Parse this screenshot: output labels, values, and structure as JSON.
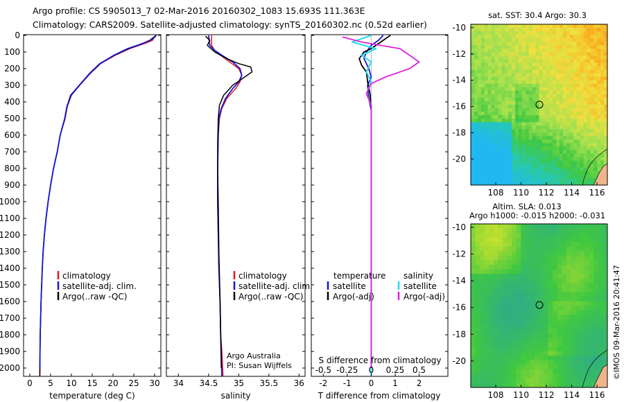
{
  "header": {
    "line1": "Argo profile: CS 5905013_7 02-Mar-2016 20160302_1083 15.693S 111.363E",
    "line2": "Climatology: CARS2009. Satellite-adjusted climatology: synTS_20160302.nc (0.52d earlier)"
  },
  "colors": {
    "climatology": "#e8141b",
    "satellite": "#1414d8",
    "argo": "#000000",
    "sal_sat": "#22d8f0",
    "sal_argo": "#e020e0",
    "land": "#f0b48c"
  },
  "depth_ticks": [
    0,
    100,
    200,
    300,
    400,
    500,
    600,
    700,
    800,
    900,
    1000,
    1100,
    1200,
    1300,
    1400,
    1500,
    1600,
    1700,
    1800,
    1900,
    2000
  ],
  "panels": {
    "temperature": {
      "xlabel": "temperature (deg C)",
      "xticks": [
        0,
        5,
        10,
        15,
        20,
        25,
        30
      ],
      "legend": [
        "climatology",
        "satellite-adj. clim.",
        "Argo(..raw -QC)"
      ]
    },
    "salinity": {
      "xlabel": "salinity",
      "xticks": [
        "34",
        "34.5",
        "35",
        "35.5",
        "36"
      ],
      "legend": [
        "climatology",
        "satellite-adj. clim.",
        "Argo(..raw -QC)"
      ],
      "note1": "Argo Australia",
      "note2": "PI: Susan Wijffels"
    },
    "difference": {
      "xlabel": "T difference from climatology",
      "xticks": [
        "-2",
        "-1",
        "0",
        "1",
        "2"
      ],
      "top_label": "S difference from climatology",
      "top_ticks": [
        "-0.5",
        "-0.25",
        "0",
        "0.25",
        "0.5"
      ],
      "legend_temp_head": "temperature",
      "legend_sal_head": "salinity",
      "legend_items": [
        "satellite",
        "Argo(-adj)",
        "satellite",
        "Argo(-adj)"
      ]
    },
    "sst_map": {
      "title": "sat. SST: 30.4 Argo: 30.3",
      "yticks": [
        "-10",
        "-12",
        "-14",
        "-16",
        "-18",
        "-20"
      ],
      "xticks": [
        "108",
        "110",
        "112",
        "114",
        "116"
      ]
    },
    "sla_map": {
      "title1": "Altim. SLA: 0.013",
      "title2": "Argo h1000: -0.015 h2000: -0.031",
      "yticks": [
        "-10",
        "-12",
        "-14",
        "-16",
        "-18",
        "-20"
      ],
      "xticks": [
        "108",
        "110",
        "112",
        "114",
        "116"
      ]
    }
  },
  "stamp": "©IMOS 09-Mar-2016 20:41:47",
  "chart_data": [
    {
      "type": "line",
      "title": "",
      "xlabel": "temperature (deg C)",
      "ylabel": "",
      "xlim": [
        -1.5,
        31.5
      ],
      "ylim": [
        2050,
        0
      ],
      "series": [
        {
          "name": "climatology",
          "x": [
            30.2,
            29.5,
            27.5,
            24,
            20.5,
            17,
            14.5,
            12,
            10,
            9,
            8.5,
            7.3,
            6.6,
            5.7,
            5.0,
            4.4,
            3.9,
            3.5,
            3.2,
            3.0,
            2.7,
            2.5,
            2.4
          ],
          "y": [
            0,
            30,
            50,
            80,
            120,
            170,
            230,
            300,
            360,
            430,
            500,
            600,
            700,
            800,
            900,
            1000,
            1100,
            1200,
            1300,
            1400,
            1600,
            1800,
            2050
          ]
        },
        {
          "name": "satellite-adj. clim.",
          "x": [
            30.4,
            28.8,
            27,
            23.8,
            20.3,
            16.8,
            14.3,
            11.9,
            9.8,
            8.9,
            8.4,
            7.3,
            6.6,
            5.7,
            5.0,
            4.4,
            3.9,
            3.5,
            3.2,
            3.0,
            2.7,
            2.5,
            2.4
          ],
          "y": [
            0,
            30,
            50,
            80,
            120,
            170,
            230,
            300,
            360,
            430,
            500,
            600,
            700,
            800,
            900,
            1000,
            1100,
            1200,
            1300,
            1400,
            1600,
            1800,
            2050
          ]
        },
        {
          "name": "Argo(..raw -QC)",
          "x": [
            30.3,
            29,
            27,
            23.5,
            20.2,
            16.9,
            14.4,
            11.9,
            9.9,
            8.9,
            8.4,
            7.3,
            6.6,
            5.7,
            5.0,
            4.4,
            3.9,
            3.5,
            3.2,
            3.0,
            2.7,
            2.5,
            2.4
          ],
          "y": [
            5,
            30,
            50,
            80,
            120,
            170,
            230,
            300,
            360,
            430,
            500,
            600,
            700,
            800,
            900,
            1000,
            1100,
            1200,
            1300,
            1400,
            1600,
            1800,
            2000
          ]
        }
      ]
    },
    {
      "type": "line",
      "title": "",
      "xlabel": "salinity",
      "ylabel": "",
      "xlim": [
        33.8,
        36.1
      ],
      "ylim": [
        2050,
        0
      ],
      "series": [
        {
          "name": "climatology",
          "x": [
            34.55,
            34.55,
            34.6,
            34.7,
            34.85,
            35.0,
            35.05,
            35.02,
            34.95,
            34.8,
            34.72,
            34.68,
            34.66,
            34.65,
            34.65,
            34.66,
            34.67,
            34.69,
            34.7,
            34.72,
            34.74
          ],
          "y": [
            0,
            60,
            90,
            120,
            160,
            200,
            240,
            280,
            320,
            380,
            440,
            500,
            600,
            800,
            1000,
            1200,
            1400,
            1600,
            1800,
            1900,
            2050
          ]
        },
        {
          "name": "satellite-adj. clim.",
          "x": [
            34.5,
            34.52,
            34.6,
            34.72,
            34.9,
            35.02,
            35.05,
            35.0,
            34.9,
            34.78,
            34.71,
            34.67,
            34.66,
            34.65,
            34.65,
            34.66,
            34.67,
            34.69,
            34.7,
            34.71,
            34.72
          ],
          "y": [
            0,
            60,
            90,
            120,
            160,
            200,
            240,
            280,
            320,
            380,
            440,
            500,
            600,
            800,
            1000,
            1200,
            1400,
            1600,
            1800,
            1900,
            2050
          ]
        },
        {
          "name": "Argo(..raw -QC)",
          "x": [
            34.45,
            34.52,
            34.48,
            34.6,
            34.8,
            35.0,
            35.2,
            35.22,
            35.1,
            34.9,
            34.75,
            34.68,
            34.66,
            34.65,
            34.65,
            34.66,
            34.67,
            34.69,
            34.7,
            34.71
          ],
          "y": [
            5,
            30,
            60,
            100,
            140,
            170,
            190,
            220,
            250,
            300,
            360,
            420,
            500,
            650,
            800,
            1000,
            1300,
            1600,
            1800,
            2000
          ]
        }
      ]
    },
    {
      "type": "line",
      "title": "",
      "xlabel": "T difference from climatology",
      "ylabel": "",
      "xlim": [
        -2.5,
        3.2
      ],
      "ylim": [
        2050,
        0
      ],
      "series": [
        {
          "name": "T satellite",
          "x": [
            0.5,
            0.3,
            0.0,
            -0.2,
            -0.3,
            -0.1,
            0.0,
            -0.15,
            -0.1,
            0.0,
            0.0,
            0.0,
            0.0,
            0.0
          ],
          "y": [
            0,
            30,
            60,
            100,
            140,
            200,
            250,
            300,
            380,
            450,
            600,
            1000,
            1500,
            2050
          ]
        },
        {
          "name": "T Argo(-adj)",
          "x": [
            0.8,
            0.6,
            0.4,
            0.2,
            0.0,
            -0.3,
            -0.5,
            -0.4,
            -0.2,
            -0.15,
            -0.05,
            0.0,
            0.0,
            0.0,
            0.0
          ],
          "y": [
            0,
            20,
            40,
            60,
            80,
            100,
            140,
            180,
            220,
            280,
            350,
            450,
            800,
            1300,
            2000
          ]
        },
        {
          "name": "S satellite",
          "x": [
            0.0,
            -0.2,
            0.05,
            -0.1,
            0.0,
            -0.05,
            0.0,
            -0.05,
            0.0,
            0.0,
            0.0,
            0.0,
            0.0
          ],
          "y": [
            0,
            40,
            80,
            120,
            160,
            220,
            280,
            350,
            420,
            600,
            1000,
            1500,
            2050
          ]
        },
        {
          "name": "S Argo(-adj)",
          "x": [
            -0.3,
            -0.1,
            0.3,
            0.4,
            0.5,
            0.4,
            0.3,
            0.15,
            0.0,
            -0.05,
            0.0,
            0.0,
            0.0,
            0.0
          ],
          "y": [
            10,
            40,
            80,
            120,
            160,
            200,
            220,
            250,
            290,
            350,
            420,
            600,
            1000,
            2000
          ]
        }
      ]
    }
  ]
}
